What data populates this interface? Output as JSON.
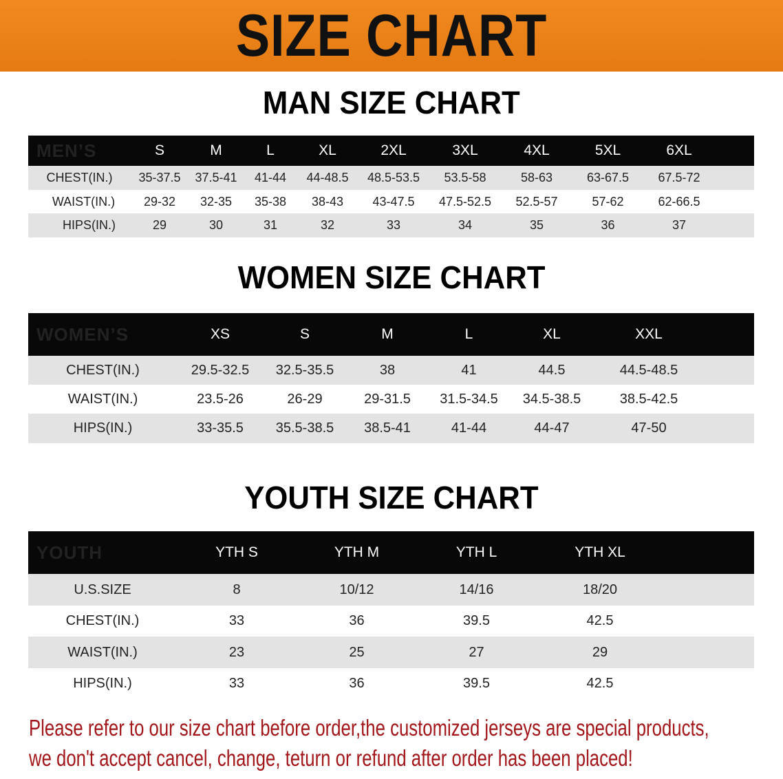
{
  "banner_title": "SIZE CHART",
  "men": {
    "title": "MAN SIZE CHART",
    "header": [
      "MEN’S",
      "S",
      "M",
      "L",
      "XL",
      "2XL",
      "3XL",
      "4XL",
      "5XL",
      "6XL"
    ],
    "rows": [
      [
        "CHEST(IN.)",
        "35-37.5",
        "37.5-41",
        "41-44",
        "44-48.5",
        "48.5-53.5",
        "53.5-58",
        "58-63",
        "63-67.5",
        "67.5-72"
      ],
      [
        "WAIST(IN.)",
        "29-32",
        "32-35",
        "35-38",
        "38-43",
        "43-47.5",
        "47.5-52.5",
        "52.5-57",
        "57-62",
        "62-66.5"
      ],
      [
        "HIPS(IN.)",
        "29",
        "30",
        "31",
        "32",
        "33",
        "34",
        "35",
        "36",
        "37"
      ]
    ]
  },
  "women": {
    "title": "WOMEN SIZE CHART",
    "header": [
      "WOMEN’S",
      "XS",
      "S",
      "M",
      "L",
      "XL",
      "XXL"
    ],
    "rows": [
      [
        "CHEST(IN.)",
        "29.5-32.5",
        "32.5-35.5",
        "38",
        "41",
        "44.5",
        "44.5-48.5"
      ],
      [
        "WAIST(IN.)",
        "23.5-26",
        "26-29",
        "29-31.5",
        "31.5-34.5",
        "34.5-38.5",
        "38.5-42.5"
      ],
      [
        "HIPS(IN.)",
        "33-35.5",
        "35.5-38.5",
        "38.5-41",
        "41-44",
        "44-47",
        "47-50"
      ]
    ]
  },
  "youth": {
    "title": "YOUTH SIZE CHART",
    "header": [
      "YOUTH",
      "YTH S",
      "YTH M",
      "YTH L",
      "YTH XL"
    ],
    "rows": [
      [
        "U.S.SIZE",
        "8",
        "10/12",
        "14/16",
        "18/20"
      ],
      [
        "CHEST(IN.)",
        "33",
        "36",
        "39.5",
        "42.5"
      ],
      [
        "WAIST(IN.)",
        "23",
        "25",
        "27",
        "29"
      ],
      [
        "HIPS(IN.)",
        "33",
        "36",
        "39.5",
        "42.5"
      ]
    ]
  },
  "notice": {
    "line1": "Please refer to our size chart before order,the customized jerseys are special products,",
    "line2": "we don't accept cancel, change, teturn or refund after order has been placed!"
  },
  "colors": {
    "banner": "#e98016",
    "header_row": "#080808",
    "stripe": "#e3e3e3",
    "notice": "#a3161a"
  }
}
